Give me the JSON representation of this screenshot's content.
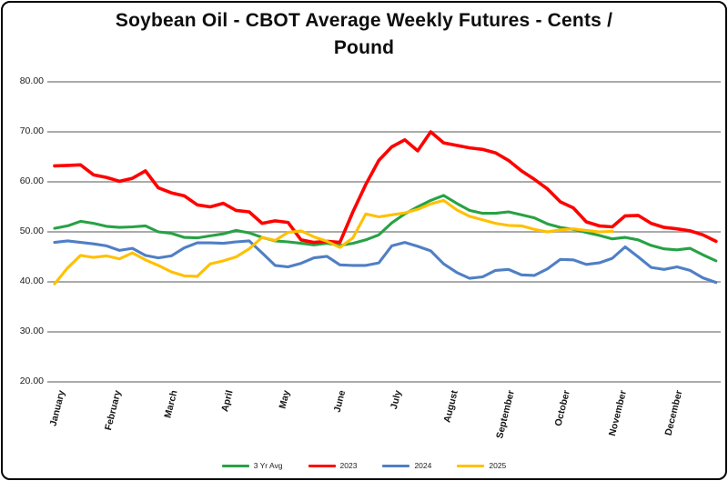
{
  "window": {
    "background_color": "#ffffff",
    "border_color": "#000000"
  },
  "chart_data": {
    "type": "line",
    "title": "Soybean Oil - CBOT Average Weekly Futures - Cents / Pound",
    "title_lines": [
      "Soybean Oil - CBOT Average Weekly Futures - Cents /",
      "Pound"
    ],
    "x_unit": "weekly (52 weeks, Jan-Dec)",
    "grid": "horizontal-only",
    "legend_position": "bottom-center",
    "grid_color": "#ABABAB",
    "ylim": [
      20,
      80
    ],
    "y_axis": {
      "ticks": [
        "80.00",
        "70.00",
        "60.00",
        "50.00",
        "40.00",
        "30.00",
        "20.00"
      ]
    },
    "x_axis": {
      "labels": [
        "January",
        "February",
        "March",
        "April",
        "May",
        "June",
        "July",
        "August",
        "September",
        "October",
        "November",
        "December"
      ]
    },
    "series": [
      {
        "name": "3 Yr Avg",
        "color": "#27A245",
        "values": [
          50.7,
          51.2,
          52.1,
          51.7,
          51.1,
          50.9,
          51.0,
          51.2,
          50.0,
          49.7,
          48.9,
          48.8,
          49.2,
          49.6,
          50.3,
          49.8,
          48.9,
          48.2,
          48.0,
          47.7,
          47.4,
          47.7,
          47.3,
          47.7,
          48.4,
          49.4,
          51.8,
          53.6,
          55.0,
          56.3,
          57.3,
          55.7,
          54.3,
          53.7,
          53.7,
          54.0,
          53.4,
          52.8,
          51.6,
          50.9,
          50.5,
          49.9,
          49.3,
          48.6,
          48.9,
          48.4,
          47.3,
          46.6,
          46.4,
          46.7,
          45.4,
          44.2
        ]
      },
      {
        "name": "2023",
        "color": "#FF0000",
        "values": [
          63.2,
          63.3,
          63.4,
          61.4,
          60.9,
          60.1,
          60.7,
          62.2,
          58.8,
          57.8,
          57.2,
          55.4,
          55.0,
          55.7,
          54.3,
          54.0,
          51.7,
          52.2,
          51.9,
          48.4,
          47.9,
          48.1,
          47.9,
          54.0,
          59.5,
          64.3,
          67.0,
          68.4,
          66.2,
          70.0,
          67.8,
          67.3,
          66.8,
          66.5,
          65.8,
          64.3,
          62.2,
          60.5,
          58.6,
          56.0,
          54.8,
          52.0,
          51.2,
          51.0,
          53.2,
          53.3,
          51.7,
          50.9,
          50.6,
          50.2,
          49.4,
          48.1
        ]
      },
      {
        "name": "2024",
        "color": "#4F7FC5",
        "values": [
          47.9,
          48.2,
          47.9,
          47.6,
          47.2,
          46.3,
          46.7,
          45.3,
          44.8,
          45.2,
          46.8,
          47.8,
          47.8,
          47.7,
          48.0,
          48.2,
          45.8,
          43.3,
          43.0,
          43.7,
          44.8,
          45.1,
          43.4,
          43.3,
          43.3,
          43.8,
          47.2,
          47.9,
          47.1,
          46.2,
          43.6,
          41.9,
          40.7,
          41.0,
          42.3,
          42.5,
          41.4,
          41.3,
          42.6,
          44.5,
          44.4,
          43.5,
          43.8,
          44.7,
          47.0,
          45.0,
          42.9,
          42.5,
          43.0,
          42.3,
          40.8,
          39.9
        ]
      },
      {
        "name": "2025",
        "color": "#FFC000",
        "values": [
          39.6,
          42.8,
          45.3,
          44.9,
          45.2,
          44.6,
          45.8,
          44.4,
          43.3,
          42.0,
          41.2,
          41.1,
          43.6,
          44.2,
          45.0,
          46.6,
          48.9,
          48.3,
          49.9,
          50.2,
          49.0,
          48.1,
          46.9,
          48.8,
          53.6,
          53.0,
          53.4,
          53.8,
          54.5,
          55.6,
          56.3,
          54.4,
          53.1,
          52.4,
          51.7,
          51.3,
          51.2,
          50.5,
          50.0,
          50.4,
          50.6,
          50.3,
          50.0,
          50.1
        ]
      }
    ]
  }
}
